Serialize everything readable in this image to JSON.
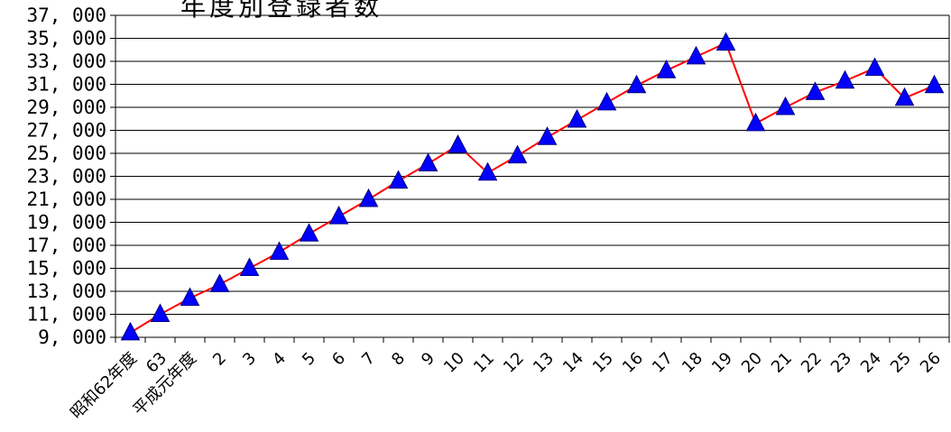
{
  "chart_data": {
    "type": "line",
    "title": "年度別登録者数",
    "xlabel": "",
    "ylabel": "",
    "categories": [
      "昭和62年度",
      "63",
      "平成元年度",
      "2",
      "3",
      "4",
      "5",
      "6",
      "7",
      "8",
      "9",
      "10",
      "11",
      "12",
      "13",
      "14",
      "15",
      "16",
      "17",
      "18",
      "19",
      "20",
      "21",
      "22",
      "23",
      "24",
      "25",
      "26"
    ],
    "series": [
      {
        "values": [
          9400,
          11000,
          12400,
          13600,
          15000,
          16400,
          18000,
          19500,
          21000,
          22600,
          24100,
          25700,
          23300,
          24800,
          26400,
          27900,
          29400,
          30900,
          32200,
          33400,
          34600,
          27600,
          29000,
          30300,
          31300,
          32400,
          29800,
          30900
        ]
      }
    ],
    "ylim": [
      9000,
      37000
    ],
    "yticks": [
      "9,000",
      "11,000",
      "13,000",
      "15,000",
      "17,000",
      "19,000",
      "21,000",
      "23,000",
      "25,000",
      "27,000",
      "29,000",
      "31,000",
      "33,000",
      "35,000",
      "37,000"
    ],
    "grid": "horizontal",
    "line_color": "#ff0000",
    "marker_color": "#0000ff",
    "marker": "triangle"
  }
}
